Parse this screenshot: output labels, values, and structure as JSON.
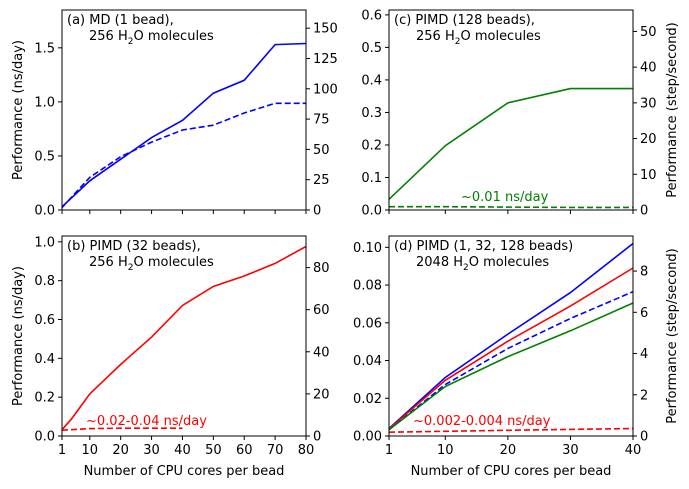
{
  "chart_data": [
    {
      "id": "a",
      "type": "line",
      "title_lines": [
        "(a) MD (1 bead),",
        "256 H",
        "2",
        "O molecules"
      ],
      "ylabel_left": "Performance (ns/day)",
      "ylabel_right": "",
      "xlabel": "",
      "xlim": [
        1,
        80
      ],
      "ylim_left": [
        0,
        1.85
      ],
      "ylim_right": [
        0,
        165
      ],
      "xticks": [
        1,
        10,
        20,
        30,
        40,
        50,
        60,
        70,
        80
      ],
      "xtick_labels": [],
      "yticks_left": [
        0.0,
        0.5,
        1.0,
        1.5
      ],
      "ytick_labels_left": [
        "0.0",
        "0.5",
        "1.0",
        "1.5"
      ],
      "yticks_right": [
        0,
        25,
        50,
        75,
        100,
        125,
        150
      ],
      "ytick_labels_right": [
        "0",
        "25",
        "50",
        "75",
        "100",
        "125",
        "150"
      ],
      "annotation": "",
      "series": [
        {
          "name": "MD ns/day",
          "axis": "left",
          "color": "#0000ff",
          "dash": false,
          "x": [
            1,
            10,
            20,
            30,
            40,
            50,
            60,
            70,
            80
          ],
          "values": [
            0.03,
            0.27,
            0.47,
            0.67,
            0.83,
            1.08,
            1.2,
            1.53,
            1.54
          ]
        },
        {
          "name": "MD step/second",
          "axis": "right",
          "color": "#0000ff",
          "dash": true,
          "x": [
            1,
            10,
            20,
            30,
            40,
            50,
            60,
            70,
            80
          ],
          "values": [
            2,
            27,
            44,
            56,
            66,
            70,
            80,
            88,
            88
          ]
        }
      ]
    },
    {
      "id": "c",
      "type": "line",
      "title_lines": [
        "(c) PIMD (128 beads),",
        "256 H",
        "2",
        "O molecules"
      ],
      "ylabel_left": "",
      "ylabel_right": "Performance (step/second)",
      "xlabel": "",
      "xlim": [
        1,
        40
      ],
      "ylim_left": [
        0,
        0.615
      ],
      "ylim_right": [
        0,
        56
      ],
      "xticks": [
        1,
        10,
        20,
        30,
        40
      ],
      "xtick_labels": [],
      "yticks_left": [
        0.0,
        0.1,
        0.2,
        0.3,
        0.4,
        0.5,
        0.6
      ],
      "ytick_labels_left": [
        "0.0",
        "0.1",
        "0.2",
        "0.3",
        "0.4",
        "0.5",
        "0.6"
      ],
      "yticks_right": [
        0,
        10,
        20,
        30,
        40,
        50
      ],
      "ytick_labels_right": [
        "0",
        "10",
        "20",
        "30",
        "40",
        "50"
      ],
      "annotation": "~0.01 ns/day",
      "annotation_color": "#008000",
      "series": [
        {
          "name": "PIMD-128 step/second",
          "axis": "right",
          "color": "#008000",
          "dash": false,
          "x": [
            1,
            4,
            10,
            20,
            30,
            40
          ],
          "values": [
            3,
            8,
            18,
            30,
            34,
            34
          ]
        },
        {
          "name": "PIMD-128 ns/day",
          "axis": "left",
          "color": "#008000",
          "dash": true,
          "x": [
            1,
            10,
            20,
            30,
            40
          ],
          "values": [
            0.01,
            0.01,
            0.009,
            0.008,
            0.008
          ]
        }
      ]
    },
    {
      "id": "b",
      "type": "line",
      "title_lines": [
        "(b) PIMD (32 beads),",
        "256 H",
        "2",
        "O molecules"
      ],
      "ylabel_left": "Performance (ns/day)",
      "ylabel_right": "",
      "xlabel": "Number of CPU cores per bead",
      "xlim": [
        1,
        80
      ],
      "ylim_left": [
        0,
        1.03
      ],
      "ylim_right": [
        0,
        95
      ],
      "xticks": [
        1,
        10,
        20,
        30,
        40,
        50,
        60,
        70,
        80
      ],
      "xtick_labels": [
        "1",
        "10",
        "20",
        "30",
        "40",
        "50",
        "60",
        "70",
        "80"
      ],
      "yticks_left": [
        0.0,
        0.2,
        0.4,
        0.6,
        0.8,
        1.0
      ],
      "ytick_labels_left": [
        "0.0",
        "0.2",
        "0.4",
        "0.6",
        "0.8",
        "1.0"
      ],
      "yticks_right": [
        0,
        20,
        40,
        60,
        80
      ],
      "ytick_labels_right": [
        "0",
        "20",
        "40",
        "60",
        "80"
      ],
      "annotation": "~0.02-0.04 ns/day",
      "annotation_color": "#ff0000",
      "series": [
        {
          "name": "PIMD-32 step/second",
          "axis": "right",
          "color": "#ff0000",
          "dash": false,
          "x": [
            1,
            4,
            10,
            20,
            30,
            40,
            50,
            60,
            70,
            80
          ],
          "values": [
            3,
            8,
            20,
            34,
            47,
            62,
            71,
            76,
            82,
            90
          ]
        },
        {
          "name": "PIMD-32 ns/day",
          "axis": "left",
          "color": "#ff0000",
          "dash": true,
          "x": [
            1,
            10,
            20,
            30,
            40
          ],
          "values": [
            0.03,
            0.038,
            0.04,
            0.04,
            0.04
          ]
        }
      ]
    },
    {
      "id": "d",
      "type": "line",
      "title_lines": [
        "(d) PIMD (1, 32, 128 beads)",
        "2048 H",
        "2",
        "O molecules"
      ],
      "ylabel_left": "",
      "ylabel_right": "Performance (step/second)",
      "xlabel": "Number of CPU cores per bead",
      "xlim": [
        1,
        40
      ],
      "ylim_left": [
        0,
        0.106
      ],
      "ylim_right": [
        0,
        9.7
      ],
      "xticks": [
        1,
        10,
        20,
        30,
        40
      ],
      "xtick_labels": [
        "1",
        "10",
        "20",
        "30",
        "40"
      ],
      "yticks_left": [
        0.0,
        0.02,
        0.04,
        0.06,
        0.08,
        0.1
      ],
      "ytick_labels_left": [
        "0.00",
        "0.02",
        "0.04",
        "0.06",
        "0.08",
        "0.10"
      ],
      "yticks_right": [
        0,
        2,
        4,
        6,
        8
      ],
      "ytick_labels_right": [
        "0",
        "2",
        "4",
        "6",
        "8"
      ],
      "annotation": "~0.002-0.004 ns/day",
      "annotation_color": "#ff0000",
      "series": [
        {
          "name": "1 bead ns/day",
          "axis": "left",
          "color": "#0000ff",
          "dash": false,
          "x": [
            1,
            10,
            20,
            30,
            40
          ],
          "values": [
            0.004,
            0.031,
            0.054,
            0.076,
            0.102
          ]
        },
        {
          "name": "32 beads step/second",
          "axis": "right",
          "color": "#ff0000",
          "dash": false,
          "x": [
            1,
            10,
            20,
            30,
            40
          ],
          "values": [
            0.35,
            2.7,
            4.6,
            6.3,
            8.15
          ]
        },
        {
          "name": "1 bead step/second",
          "axis": "right",
          "color": "#0000ff",
          "dash": true,
          "x": [
            1,
            10,
            20,
            30,
            40
          ],
          "values": [
            0.3,
            2.5,
            4.25,
            5.7,
            7.0
          ]
        },
        {
          "name": "128 beads step/second",
          "axis": "right",
          "color": "#008000",
          "dash": false,
          "x": [
            1,
            10,
            20,
            30,
            40
          ],
          "values": [
            0.3,
            2.4,
            3.85,
            5.1,
            6.45
          ]
        },
        {
          "name": "32 beads ns/day",
          "axis": "left",
          "color": "#ff0000",
          "dash": true,
          "x": [
            1,
            10,
            20,
            30,
            40
          ],
          "values": [
            0.002,
            0.0025,
            0.003,
            0.0035,
            0.004
          ]
        }
      ]
    }
  ]
}
